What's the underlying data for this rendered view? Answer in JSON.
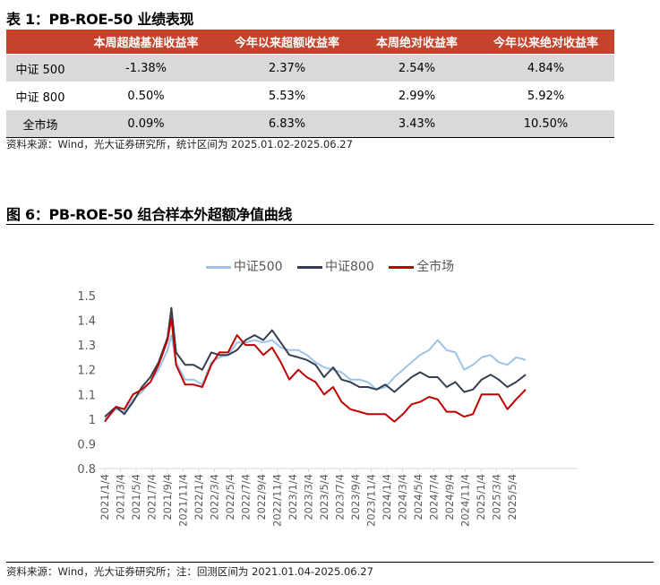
{
  "table": {
    "title": "表 1：PB-ROE-50 业绩表现",
    "headers": [
      "",
      "本周超越基准收益率",
      "今年以来超额收益率",
      "本周绝对收益率",
      "今年以来绝对收益率"
    ],
    "rows": [
      [
        "中证 500",
        "-1.38%",
        "2.37%",
        "2.54%",
        "4.84%"
      ],
      [
        "中证 800",
        "0.50%",
        "5.53%",
        "2.99%",
        "5.92%"
      ],
      [
        "全市场",
        "0.09%",
        "6.83%",
        "3.43%",
        "10.50%"
      ]
    ],
    "source": "资料来源：Wind，光大证券研究所，统计区间为 2025.01.02-2025.06.27",
    "header_color": "#c5432b"
  },
  "figure": {
    "title": "图 6：PB-ROE-50 组合样本外超额净值曲线",
    "source": "资料来源：Wind，光大证券研究所；注：回测区间为 2021.01.04-2025.06.27"
  },
  "chart_data": {
    "type": "line",
    "title": "",
    "xlabel": "",
    "ylabel": "",
    "ylim": [
      0.8,
      1.5
    ],
    "yticks": [
      "0.8",
      "0.9",
      "1",
      "1.1",
      "1.2",
      "1.3",
      "1.4",
      "1.5"
    ],
    "xticks": [
      "2021/1/4",
      "2021/3/4",
      "2021/5/4",
      "2021/7/4",
      "2021/9/4",
      "2021/11/4",
      "2022/1/4",
      "2022/3/4",
      "2022/5/4",
      "2022/7/4",
      "2022/9/4",
      "2022/11/4",
      "2023/1/4",
      "2023/3/4",
      "2023/5/4",
      "2023/7/4",
      "2023/9/4",
      "2023/11/4",
      "2024/1/4",
      "2024/3/4",
      "2024/5/4",
      "2024/7/4",
      "2024/9/4",
      "2024/11/4",
      "2025/1/4",
      "2025/3/4",
      "2025/5/4"
    ],
    "grid": false,
    "legend_position": "top",
    "x": [
      "2021-01-04",
      "2021-02-17",
      "2021-03-21",
      "2021-04-24",
      "2021-05-28",
      "2021-06-30",
      "2021-08-01",
      "2021-09-05",
      "2021-09-20",
      "2021-10-08",
      "2021-11-12",
      "2021-12-15",
      "2022-01-18",
      "2022-02-22",
      "2022-03-25",
      "2022-04-28",
      "2022-06-02",
      "2022-07-05",
      "2022-08-09",
      "2022-09-12",
      "2022-10-16",
      "2022-11-19",
      "2022-12-22",
      "2023-01-26",
      "2023-02-28",
      "2023-04-03",
      "2023-05-06",
      "2023-06-10",
      "2023-07-13",
      "2023-08-16",
      "2023-09-20",
      "2023-10-23",
      "2023-11-26",
      "2023-12-30",
      "2024-02-03",
      "2024-03-07",
      "2024-04-10",
      "2024-05-13",
      "2024-06-17",
      "2024-07-20",
      "2024-08-24",
      "2024-09-27",
      "2024-10-31",
      "2024-12-04",
      "2025-01-07",
      "2025-02-11",
      "2025-03-14",
      "2025-04-17",
      "2025-05-21",
      "2025-06-27"
    ],
    "series": [
      {
        "name": "中证500",
        "color": "#9dc3e6",
        "values": [
          1.0,
          1.04,
          1.03,
          1.08,
          1.11,
          1.15,
          1.2,
          1.28,
          1.34,
          1.23,
          1.16,
          1.16,
          1.14,
          1.23,
          1.25,
          1.26,
          1.31,
          1.31,
          1.32,
          1.31,
          1.32,
          1.29,
          1.28,
          1.28,
          1.26,
          1.23,
          1.21,
          1.2,
          1.19,
          1.16,
          1.16,
          1.15,
          1.12,
          1.13,
          1.17,
          1.2,
          1.23,
          1.26,
          1.28,
          1.32,
          1.28,
          1.27,
          1.2,
          1.22,
          1.25,
          1.26,
          1.23,
          1.22,
          1.25,
          1.24
        ]
      },
      {
        "name": "中证800",
        "color": "#333f50",
        "values": [
          1.01,
          1.05,
          1.02,
          1.07,
          1.13,
          1.17,
          1.23,
          1.33,
          1.45,
          1.27,
          1.22,
          1.22,
          1.2,
          1.27,
          1.26,
          1.26,
          1.28,
          1.32,
          1.34,
          1.32,
          1.36,
          1.31,
          1.26,
          1.25,
          1.24,
          1.22,
          1.17,
          1.21,
          1.16,
          1.15,
          1.13,
          1.13,
          1.12,
          1.14,
          1.11,
          1.14,
          1.17,
          1.19,
          1.17,
          1.17,
          1.13,
          1.15,
          1.11,
          1.12,
          1.16,
          1.18,
          1.16,
          1.13,
          1.15,
          1.18
        ]
      },
      {
        "name": "全市场",
        "color": "#c00000",
        "values": [
          0.99,
          1.05,
          1.04,
          1.1,
          1.12,
          1.15,
          1.22,
          1.32,
          1.41,
          1.22,
          1.14,
          1.14,
          1.13,
          1.22,
          1.27,
          1.27,
          1.34,
          1.3,
          1.3,
          1.26,
          1.29,
          1.23,
          1.16,
          1.2,
          1.17,
          1.15,
          1.1,
          1.13,
          1.07,
          1.04,
          1.03,
          1.02,
          1.02,
          1.02,
          0.99,
          1.02,
          1.06,
          1.07,
          1.09,
          1.08,
          1.03,
          1.03,
          1.01,
          1.02,
          1.1,
          1.1,
          1.1,
          1.04,
          1.08,
          1.12
        ]
      }
    ]
  }
}
